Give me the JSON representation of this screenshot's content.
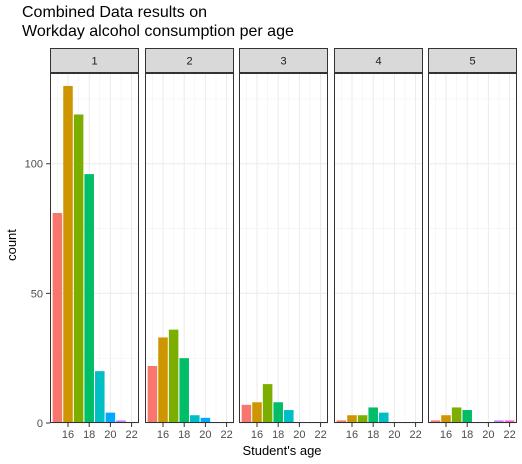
{
  "chart_data": {
    "type": "bar",
    "title_lines": [
      "Combined Data results on",
      "Workday alcohol consumption per age"
    ],
    "xlabel": "Student's age",
    "ylabel": "count",
    "facet_variable_values": [
      "1",
      "2",
      "3",
      "4",
      "5"
    ],
    "x_categories": [
      15,
      16,
      17,
      18,
      19,
      20,
      21,
      22
    ],
    "x_ticks": [
      16,
      18,
      20,
      22
    ],
    "y_ticks": [
      0,
      50,
      100
    ],
    "ylim": [
      0,
      135
    ],
    "xlim": [
      14.3,
      22.7
    ],
    "grid": true,
    "legend": "none",
    "colors": [
      "#F8766D",
      "#CD9600",
      "#7CAE00",
      "#00BE67",
      "#00BFC4",
      "#00A9FF",
      "#C77CFF",
      "#FF61CC"
    ],
    "facets": [
      {
        "label": "1",
        "values": [
          81,
          130,
          119,
          96,
          20,
          4,
          1,
          0
        ]
      },
      {
        "label": "2",
        "values": [
          22,
          33,
          36,
          25,
          3,
          2,
          0,
          0
        ]
      },
      {
        "label": "3",
        "values": [
          7,
          8,
          15,
          8,
          5,
          0,
          0,
          0
        ]
      },
      {
        "label": "4",
        "values": [
          1,
          3,
          3,
          6,
          4,
          0,
          0,
          0
        ]
      },
      {
        "label": "5",
        "values": [
          1,
          3,
          6,
          5,
          0,
          0,
          1,
          1
        ]
      }
    ]
  }
}
